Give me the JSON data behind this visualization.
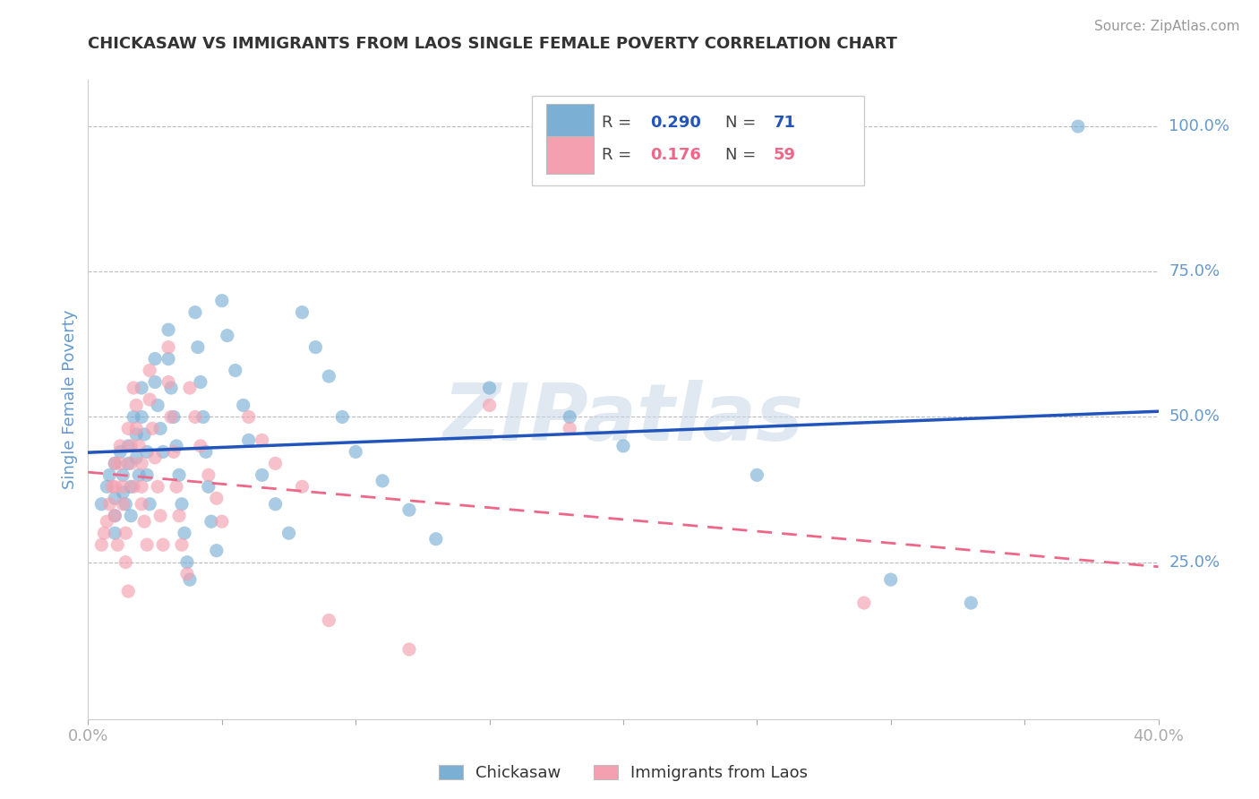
{
  "title": "CHICKASAW VS IMMIGRANTS FROM LAOS SINGLE FEMALE POVERTY CORRELATION CHART",
  "source": "Source: ZipAtlas.com",
  "ylabel": "Single Female Poverty",
  "xlim": [
    0.0,
    0.4
  ],
  "ylim": [
    -0.02,
    1.08
  ],
  "xticks": [
    0.0,
    0.05,
    0.1,
    0.15,
    0.2,
    0.25,
    0.3,
    0.35,
    0.4
  ],
  "xtick_labels": [
    "0.0%",
    "",
    "",
    "",
    "",
    "",
    "",
    "",
    "40.0%"
  ],
  "ytick_labels_right": [
    "25.0%",
    "50.0%",
    "75.0%",
    "100.0%"
  ],
  "ytick_vals_right": [
    0.25,
    0.5,
    0.75,
    1.0
  ],
  "blue_color": "#7BAFD4",
  "pink_color": "#F4A0B0",
  "blue_line_color": "#2255BB",
  "pink_line_color": "#EE6688",
  "R_blue": 0.29,
  "N_blue": 71,
  "R_pink": 0.176,
  "N_pink": 59,
  "watermark": "ZIPatlas",
  "axis_label_color": "#6699CC",
  "blue_scatter": [
    [
      0.005,
      0.35
    ],
    [
      0.007,
      0.38
    ],
    [
      0.008,
      0.4
    ],
    [
      0.01,
      0.42
    ],
    [
      0.01,
      0.36
    ],
    [
      0.01,
      0.33
    ],
    [
      0.01,
      0.3
    ],
    [
      0.012,
      0.44
    ],
    [
      0.013,
      0.4
    ],
    [
      0.013,
      0.37
    ],
    [
      0.014,
      0.35
    ],
    [
      0.015,
      0.45
    ],
    [
      0.015,
      0.42
    ],
    [
      0.016,
      0.38
    ],
    [
      0.016,
      0.33
    ],
    [
      0.017,
      0.5
    ],
    [
      0.018,
      0.47
    ],
    [
      0.018,
      0.43
    ],
    [
      0.019,
      0.4
    ],
    [
      0.02,
      0.55
    ],
    [
      0.02,
      0.5
    ],
    [
      0.021,
      0.47
    ],
    [
      0.022,
      0.44
    ],
    [
      0.022,
      0.4
    ],
    [
      0.023,
      0.35
    ],
    [
      0.025,
      0.6
    ],
    [
      0.025,
      0.56
    ],
    [
      0.026,
      0.52
    ],
    [
      0.027,
      0.48
    ],
    [
      0.028,
      0.44
    ],
    [
      0.03,
      0.65
    ],
    [
      0.03,
      0.6
    ],
    [
      0.031,
      0.55
    ],
    [
      0.032,
      0.5
    ],
    [
      0.033,
      0.45
    ],
    [
      0.034,
      0.4
    ],
    [
      0.035,
      0.35
    ],
    [
      0.036,
      0.3
    ],
    [
      0.037,
      0.25
    ],
    [
      0.038,
      0.22
    ],
    [
      0.04,
      0.68
    ],
    [
      0.041,
      0.62
    ],
    [
      0.042,
      0.56
    ],
    [
      0.043,
      0.5
    ],
    [
      0.044,
      0.44
    ],
    [
      0.045,
      0.38
    ],
    [
      0.046,
      0.32
    ],
    [
      0.048,
      0.27
    ],
    [
      0.05,
      0.7
    ],
    [
      0.052,
      0.64
    ],
    [
      0.055,
      0.58
    ],
    [
      0.058,
      0.52
    ],
    [
      0.06,
      0.46
    ],
    [
      0.065,
      0.4
    ],
    [
      0.07,
      0.35
    ],
    [
      0.075,
      0.3
    ],
    [
      0.08,
      0.68
    ],
    [
      0.085,
      0.62
    ],
    [
      0.09,
      0.57
    ],
    [
      0.095,
      0.5
    ],
    [
      0.1,
      0.44
    ],
    [
      0.11,
      0.39
    ],
    [
      0.12,
      0.34
    ],
    [
      0.13,
      0.29
    ],
    [
      0.15,
      0.55
    ],
    [
      0.18,
      0.5
    ],
    [
      0.2,
      0.45
    ],
    [
      0.25,
      0.4
    ],
    [
      0.3,
      0.22
    ],
    [
      0.33,
      0.18
    ],
    [
      0.37,
      1.0
    ]
  ],
  "pink_scatter": [
    [
      0.005,
      0.28
    ],
    [
      0.006,
      0.3
    ],
    [
      0.007,
      0.32
    ],
    [
      0.008,
      0.35
    ],
    [
      0.009,
      0.38
    ],
    [
      0.01,
      0.42
    ],
    [
      0.01,
      0.38
    ],
    [
      0.01,
      0.33
    ],
    [
      0.011,
      0.28
    ],
    [
      0.012,
      0.45
    ],
    [
      0.012,
      0.42
    ],
    [
      0.013,
      0.38
    ],
    [
      0.013,
      0.35
    ],
    [
      0.014,
      0.3
    ],
    [
      0.014,
      0.25
    ],
    [
      0.015,
      0.2
    ],
    [
      0.015,
      0.48
    ],
    [
      0.016,
      0.45
    ],
    [
      0.016,
      0.42
    ],
    [
      0.017,
      0.38
    ],
    [
      0.017,
      0.55
    ],
    [
      0.018,
      0.52
    ],
    [
      0.018,
      0.48
    ],
    [
      0.019,
      0.45
    ],
    [
      0.02,
      0.42
    ],
    [
      0.02,
      0.38
    ],
    [
      0.02,
      0.35
    ],
    [
      0.021,
      0.32
    ],
    [
      0.022,
      0.28
    ],
    [
      0.023,
      0.58
    ],
    [
      0.023,
      0.53
    ],
    [
      0.024,
      0.48
    ],
    [
      0.025,
      0.43
    ],
    [
      0.026,
      0.38
    ],
    [
      0.027,
      0.33
    ],
    [
      0.028,
      0.28
    ],
    [
      0.03,
      0.62
    ],
    [
      0.03,
      0.56
    ],
    [
      0.031,
      0.5
    ],
    [
      0.032,
      0.44
    ],
    [
      0.033,
      0.38
    ],
    [
      0.034,
      0.33
    ],
    [
      0.035,
      0.28
    ],
    [
      0.037,
      0.23
    ],
    [
      0.038,
      0.55
    ],
    [
      0.04,
      0.5
    ],
    [
      0.042,
      0.45
    ],
    [
      0.045,
      0.4
    ],
    [
      0.048,
      0.36
    ],
    [
      0.05,
      0.32
    ],
    [
      0.06,
      0.5
    ],
    [
      0.065,
      0.46
    ],
    [
      0.07,
      0.42
    ],
    [
      0.08,
      0.38
    ],
    [
      0.09,
      0.15
    ],
    [
      0.12,
      0.1
    ],
    [
      0.15,
      0.52
    ],
    [
      0.18,
      0.48
    ],
    [
      0.29,
      0.18
    ]
  ]
}
